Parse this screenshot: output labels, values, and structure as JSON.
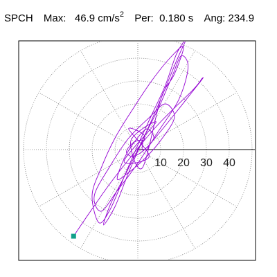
{
  "header": {
    "station": "SPCH",
    "max_label": "Max:",
    "max_value": "46.9 cm/s",
    "max_unit_exp": "2",
    "per_label": "Per:",
    "per_value": "0.180 s",
    "ang_label": "Ang:",
    "ang_value": "234.9"
  },
  "chart_data": {
    "type": "scatter",
    "plot": "particle-motion-polar",
    "radial_ticks": [
      10,
      20,
      30,
      40
    ],
    "grid": true,
    "grid_style": "dotted polar rings with radial spokes every 30 deg",
    "rings": [
      10,
      20,
      30,
      40,
      50
    ],
    "x_axis": "positive horizontal with tick labels",
    "trace_color": "#9400D3",
    "end_marker_color": "#12A08A",
    "end_point": {
      "x": -28.1,
      "y": -37.9
    },
    "series": [
      {
        "points": [
          [
            0,
            0
          ],
          [
            3,
            6
          ],
          [
            -4,
            9
          ],
          [
            5,
            -3
          ],
          [
            -6,
            -5
          ],
          [
            8,
            12
          ],
          [
            -3,
            4
          ],
          [
            2,
            -8
          ],
          [
            10,
            22
          ],
          [
            16,
            33
          ],
          [
            20,
            45
          ],
          [
            14,
            40
          ],
          [
            6,
            30
          ],
          [
            -2,
            18
          ],
          [
            -10,
            5
          ],
          [
            -16,
            -8
          ],
          [
            -20,
            -20
          ],
          [
            -17,
            -32
          ],
          [
            -12,
            -26
          ],
          [
            -6,
            -12
          ],
          [
            0,
            2
          ],
          [
            6,
            15
          ],
          [
            12,
            28
          ],
          [
            17,
            42
          ],
          [
            21,
            48
          ],
          [
            17,
            39
          ],
          [
            10,
            22
          ],
          [
            2,
            4
          ],
          [
            -6,
            -12
          ],
          [
            -12,
            -24
          ],
          [
            -15,
            -33
          ],
          [
            -10,
            -25
          ],
          [
            -4,
            -10
          ],
          [
            3,
            6
          ],
          [
            9,
            18
          ],
          [
            15,
            32
          ],
          [
            19,
            41
          ],
          [
            22,
            36
          ],
          [
            18,
            22
          ],
          [
            9,
            8
          ],
          [
            0,
            -6
          ],
          [
            -9,
            -18
          ],
          [
            -16,
            -27
          ],
          [
            -19,
            -20
          ],
          [
            -12,
            -7
          ],
          [
            -4,
            5
          ],
          [
            5,
            14
          ],
          [
            12,
            20
          ],
          [
            16,
            14
          ],
          [
            10,
            4
          ],
          [
            3,
            -4
          ],
          [
            -4,
            -10
          ],
          [
            -9,
            -13
          ],
          [
            -6,
            -4
          ],
          [
            -1,
            4
          ],
          [
            4,
            9
          ],
          [
            7,
            5
          ],
          [
            3,
            0
          ],
          [
            -2,
            -3
          ],
          [
            -5,
            -1
          ],
          [
            -2,
            3
          ],
          [
            2,
            4
          ],
          [
            4,
            1
          ],
          [
            26,
            28
          ],
          [
            28,
            31
          ],
          [
            24,
            26
          ],
          [
            8,
            10
          ],
          [
            -10,
            -12
          ],
          [
            -20,
            -26
          ],
          [
            -28.1,
            -37.9
          ]
        ]
      }
    ]
  }
}
